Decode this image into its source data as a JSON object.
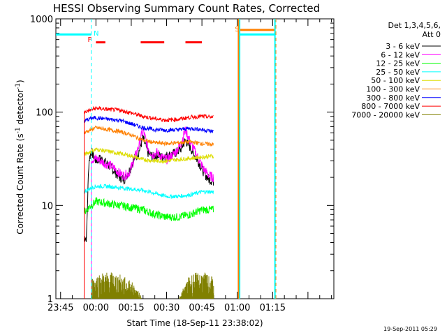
{
  "chart_data": {
    "type": "line",
    "title": "HESSI Observing Summary Count Rates, Corrected",
    "xlabel": "Start Time (18-Sep-11 23:38:02)",
    "ylabel_main": "Corrected Count Rate (s",
    "ylabel_sup1": "-1",
    "ylabel_mid": " detector",
    "ylabel_sup2": "-1",
    "ylabel_end": ")",
    "y_scale": "log",
    "ylim": [
      1,
      1000
    ],
    "xlim_min": [
      -17,
      101
    ],
    "y_ticks": [
      {
        "value": 1,
        "label": "1"
      },
      {
        "value": 10,
        "label": "10"
      },
      {
        "value": 100,
        "label": "100"
      },
      {
        "value": 1000,
        "label": "1000"
      }
    ],
    "x_ticks": [
      {
        "value": -15,
        "label": "23:45"
      },
      {
        "value": 0,
        "label": "00:00"
      },
      {
        "value": 15,
        "label": "00:15"
      },
      {
        "value": 30,
        "label": "00:30"
      },
      {
        "value": 45,
        "label": "00:45"
      },
      {
        "value": 60,
        "label": "01:00"
      },
      {
        "value": 75,
        "label": "01:15"
      }
    ],
    "legend_title_1": "Det 1,3,4,5,6,",
    "legend_title_2": "Att 0",
    "legend_position": "top-right",
    "series": [
      {
        "name": "3 - 6 keV",
        "color": "#000000",
        "x": [
          -5,
          -4,
          -3,
          -2,
          -1,
          0,
          2,
          4,
          6,
          8,
          10,
          12,
          14,
          16,
          18,
          20,
          22,
          24,
          26,
          28,
          30,
          32,
          34,
          36,
          38,
          40,
          42,
          44,
          46,
          48,
          50
        ],
        "y": [
          4.5,
          4.5,
          30,
          38,
          34,
          30,
          32,
          29,
          26,
          23,
          20,
          19,
          23,
          31,
          36,
          53,
          37,
          33,
          35,
          33,
          34,
          35,
          37,
          40,
          50,
          42,
          34,
          28,
          22,
          19,
          18
        ]
      },
      {
        "name": "6 - 12 keV",
        "color": "#ff00ff",
        "x": [
          -2,
          0,
          2,
          4,
          6,
          8,
          10,
          12,
          14,
          16,
          18,
          20,
          22,
          24,
          26,
          28,
          30,
          32,
          34,
          36,
          38,
          40,
          42,
          44,
          46,
          48,
          50
        ],
        "y": [
          31,
          32,
          30,
          28,
          27,
          25,
          22,
          21,
          22,
          30,
          42,
          65,
          42,
          35,
          37,
          33,
          31,
          34,
          38,
          45,
          65,
          48,
          38,
          30,
          24,
          21,
          20
        ]
      },
      {
        "name": "12 - 25 keV",
        "color": "#00ff00",
        "x": [
          -5,
          -2,
          0,
          5,
          10,
          15,
          20,
          25,
          30,
          35,
          40,
          45,
          50
        ],
        "y": [
          8.5,
          10,
          11,
          10.5,
          10,
          9.5,
          9,
          8,
          7.5,
          7.5,
          8,
          9,
          9
        ]
      },
      {
        "name": "25 - 50 keV",
        "color": "#00ffff",
        "x": [
          -5,
          -2,
          0,
          5,
          10,
          15,
          20,
          25,
          30,
          35,
          40,
          45,
          50
        ],
        "y": [
          14,
          15.5,
          16,
          16,
          15.5,
          15,
          14.5,
          13.5,
          12.5,
          12.5,
          13,
          14,
          14
        ]
      },
      {
        "name": "50 - 100 keV",
        "color": "#dddd00",
        "x": [
          -5,
          -2,
          0,
          5,
          10,
          15,
          20,
          25,
          30,
          35,
          40,
          45,
          50
        ],
        "y": [
          35,
          38,
          40,
          38,
          36,
          34,
          31,
          30,
          30,
          31,
          32,
          33,
          34
        ]
      },
      {
        "name": "100 - 300 keV",
        "color": "#ff8000",
        "x": [
          -5,
          -2,
          0,
          5,
          10,
          15,
          20,
          25,
          30,
          35,
          40,
          45,
          50
        ],
        "y": [
          60,
          65,
          68,
          65,
          62,
          57,
          50,
          47,
          46,
          47,
          48,
          46,
          45
        ]
      },
      {
        "name": "300 - 800 keV",
        "color": "#0000ff",
        "x": [
          -5,
          -2,
          0,
          5,
          10,
          15,
          20,
          25,
          30,
          35,
          40,
          45,
          50
        ],
        "y": [
          80,
          86,
          87,
          84,
          82,
          75,
          68,
          65,
          64,
          65,
          67,
          65,
          62
        ]
      },
      {
        "name": "800 - 7000 keV",
        "color": "#ff0000",
        "x": [
          -5,
          -2,
          0,
          5,
          10,
          15,
          20,
          25,
          30,
          35,
          40,
          45,
          50
        ],
        "y": [
          100,
          106,
          110,
          107,
          105,
          98,
          90,
          85,
          82,
          84,
          88,
          90,
          88
        ]
      },
      {
        "name": "7000 - 20000 keV",
        "color": "#808000",
        "x": [
          -2,
          0,
          5,
          10,
          15,
          20,
          25,
          30,
          35,
          40,
          45,
          50
        ],
        "y": [
          1.5,
          1.6,
          1.7,
          1.6,
          1.4,
          1,
          1,
          1,
          1,
          1.6,
          1.7,
          1.5
        ]
      }
    ],
    "saa_level": 680,
    "saa_segments": [
      {
        "x1": -17,
        "x2": -2,
        "color": "#00ffff"
      },
      {
        "x1": 61,
        "x2": 76,
        "color": "#00ffff"
      }
    ],
    "orange_segment": {
      "x1": 61,
      "x2": 76,
      "y": 760,
      "color": "#ff8000"
    },
    "flare_bars": [
      {
        "x1": 0,
        "x2": 4
      },
      {
        "x1": 19,
        "x2": 29
      },
      {
        "x1": 38,
        "x2": 45
      }
    ],
    "flare_level": 560,
    "vlines": [
      {
        "x": -2,
        "color": "#00ffff",
        "style": "dash"
      },
      {
        "x": 61,
        "color": "#00ffff",
        "style": "solid"
      },
      {
        "x": 60.5,
        "color": "#ff8000",
        "style": "solid"
      },
      {
        "x": 76,
        "color": "#00ffff",
        "style": "solid"
      },
      {
        "x": 76.4,
        "color": "#ff8000",
        "style": "dash"
      }
    ],
    "markers": [
      {
        "label": "N",
        "x": -1,
        "color": "#00ffff"
      },
      {
        "label": "F",
        "x": -3.5,
        "color": "#ff0000"
      },
      {
        "label": "S",
        "x": 59,
        "color": "#ff8000"
      }
    ],
    "timestamp": "19-Sep-2011 05:29"
  }
}
